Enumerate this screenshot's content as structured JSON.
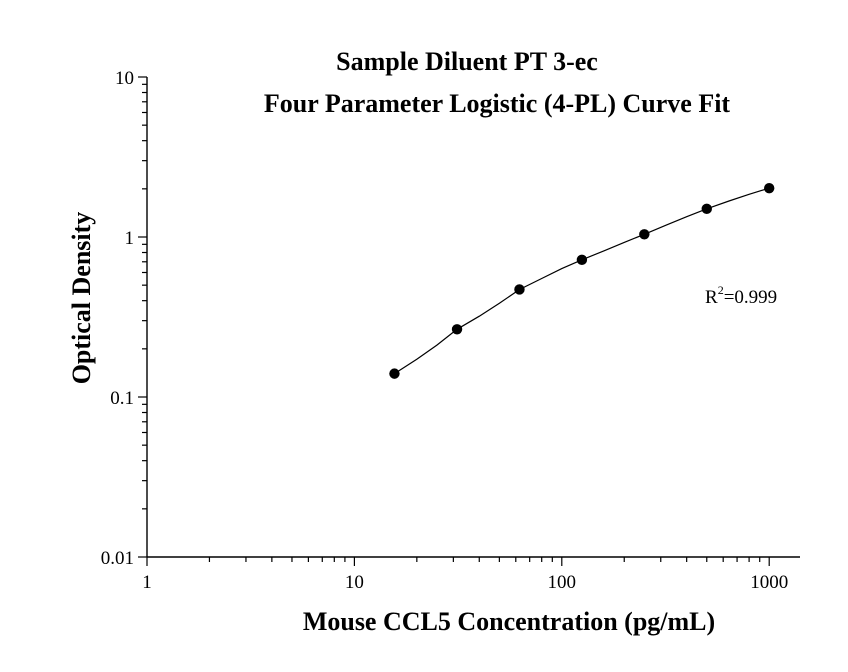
{
  "chart_data": {
    "type": "scatter",
    "title": "Sample Diluent PT 3-ec",
    "subtitle": "Four Parameter Logistic (4-PL) Curve Fit",
    "xlabel": "Mouse CCL5 Concentration (pg/mL)",
    "ylabel": "Optical Density",
    "x_scale": "log",
    "y_scale": "log",
    "xlim": [
      1,
      1500
    ],
    "ylim": [
      0.01,
      10
    ],
    "x_ticks": [
      1,
      10,
      100,
      1000
    ],
    "x_tick_labels": [
      "1",
      "10",
      "100",
      "1000"
    ],
    "y_ticks": [
      0.01,
      0.1,
      1,
      10
    ],
    "y_tick_labels": [
      "0.01",
      "0.1",
      "1",
      "10"
    ],
    "grid": false,
    "legend": "none",
    "points": {
      "x": [
        15.6,
        31.25,
        62.5,
        125,
        250,
        500,
        1000
      ],
      "y": [
        0.14,
        0.265,
        0.47,
        0.72,
        1.04,
        1.5,
        2.02
      ]
    },
    "fit_curve": {
      "model": "4-PL",
      "x": [
        15.6,
        20,
        25,
        31.25,
        40,
        50,
        62.5,
        80,
        100,
        125,
        160,
        200,
        250,
        320,
        400,
        500,
        640,
        800,
        1000
      ],
      "y": [
        0.14,
        0.172,
        0.211,
        0.265,
        0.32,
        0.385,
        0.47,
        0.55,
        0.635,
        0.72,
        0.82,
        0.925,
        1.04,
        1.19,
        1.34,
        1.5,
        1.68,
        1.85,
        2.02
      ]
    },
    "annotation": {
      "base": "R",
      "superscript": "2",
      "value": "=0.999"
    },
    "colors": {
      "marker": "#000000",
      "line": "#000000",
      "axis": "#000000",
      "background": "#ffffff"
    }
  }
}
